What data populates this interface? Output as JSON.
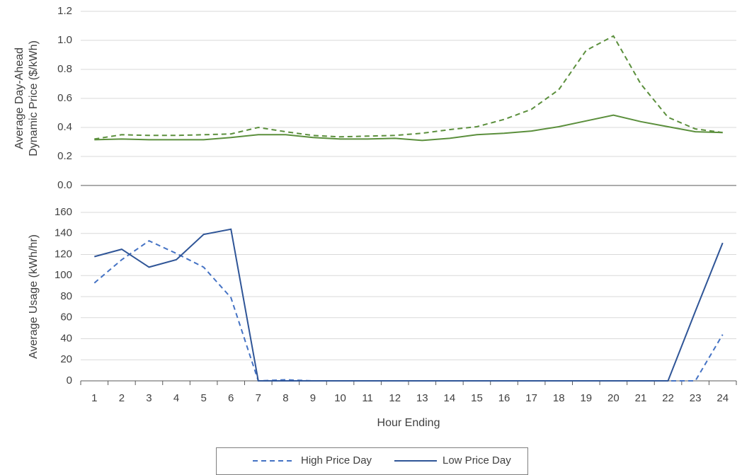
{
  "chart_data": [
    {
      "type": "line",
      "ylabel": [
        "Average Day-Ahead",
        "Dynamic Price ($/kWh)"
      ],
      "ylim": [
        0,
        1.2
      ],
      "yticks": [
        {
          "value": 0,
          "label": "0.0"
        },
        0.2,
        0.4,
        0.6,
        0.8,
        {
          "value": 1,
          "label": "1.0"
        },
        1.2
      ],
      "grid": true,
      "series": [
        {
          "color": "#5b8f3c",
          "dash": true,
          "values": [
            0.32,
            0.35,
            0.345,
            0.345,
            0.35,
            0.355,
            0.4,
            0.37,
            0.345,
            0.335,
            0.34,
            0.345,
            0.36,
            0.385,
            0.405,
            0.455,
            0.525,
            0.66,
            0.93,
            1.03,
            0.7,
            0.47,
            0.39,
            0.365
          ]
        },
        {
          "color": "#5b8f3c",
          "dash": false,
          "values": [
            0.315,
            0.32,
            0.315,
            0.315,
            0.315,
            0.33,
            0.35,
            0.35,
            0.33,
            0.32,
            0.32,
            0.325,
            0.31,
            0.325,
            0.35,
            0.36,
            0.375,
            0.405,
            0.445,
            0.485,
            0.44,
            0.405,
            0.37,
            0.365
          ]
        }
      ]
    },
    {
      "type": "line",
      "xlabel": "Hour Ending",
      "ylabel": [
        "Average Usage (kWh/hr)"
      ],
      "categories": [
        "1",
        "2",
        "3",
        "4",
        "5",
        "6",
        "7",
        "8",
        "9",
        "10",
        "11",
        "12",
        "13",
        "14",
        "15",
        "16",
        "17",
        "18",
        "19",
        "20",
        "21",
        "22",
        "23",
        "24"
      ],
      "ylim": [
        0,
        160
      ],
      "yticks": [
        0,
        20,
        40,
        60,
        80,
        100,
        120,
        140,
        160
      ],
      "grid": true,
      "legend": "bottom",
      "series": [
        {
          "name": "High Price Day",
          "color": "#4472c4",
          "dash": true,
          "values": [
            93,
            115,
            133,
            121,
            108,
            79,
            0,
            1,
            0,
            0,
            0,
            0,
            0,
            0,
            0,
            0,
            0,
            0,
            0,
            0,
            0,
            0,
            0,
            44
          ]
        },
        {
          "name": "Low Price Day",
          "color": "#2f5597",
          "dash": false,
          "values": [
            118,
            125,
            108,
            115,
            139,
            144,
            0,
            0,
            0,
            0,
            0,
            0,
            0,
            0,
            0,
            0,
            0,
            0,
            0,
            0,
            0,
            0,
            66,
            131
          ]
        }
      ]
    }
  ]
}
